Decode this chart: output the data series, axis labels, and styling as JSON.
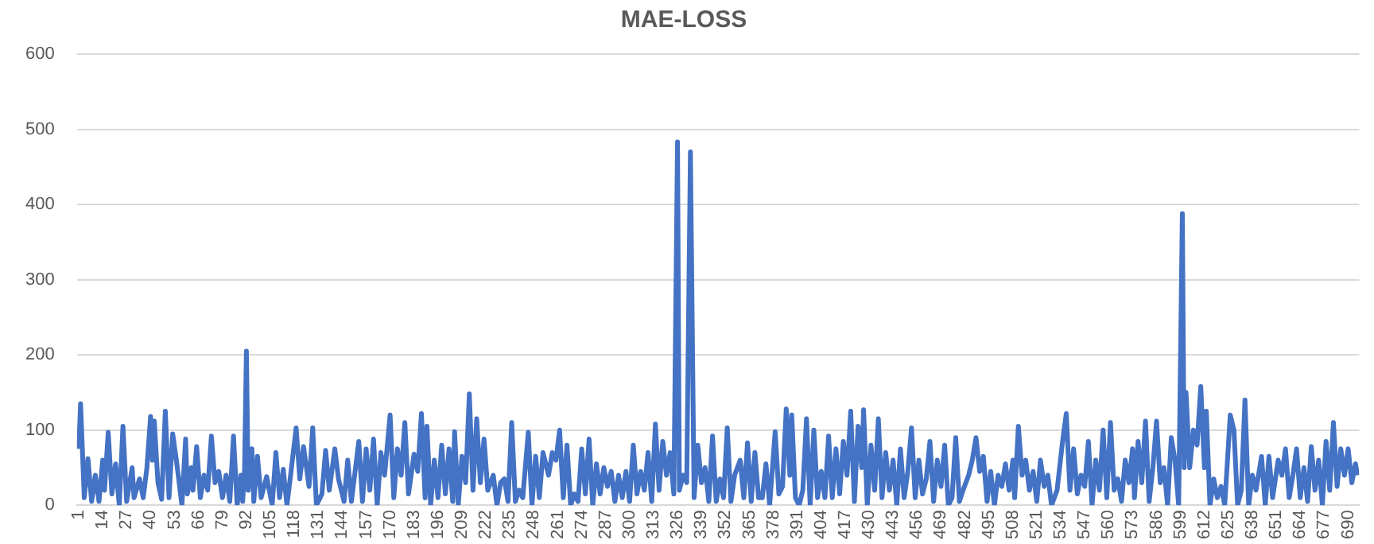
{
  "chart_data": {
    "type": "line",
    "title": "MAE-LOSS",
    "color": "#4472c4",
    "grid": "y",
    "legend": false,
    "marker": "none",
    "line_style": "solid",
    "ylim": [
      0,
      600
    ],
    "yticks": [
      0,
      100,
      200,
      300,
      400,
      500,
      600
    ],
    "xlim": [
      0,
      696
    ],
    "xticks": [
      1,
      14,
      27,
      40,
      53,
      66,
      79,
      92,
      105,
      118,
      131,
      144,
      157,
      170,
      183,
      196,
      209,
      222,
      235,
      248,
      261,
      274,
      287,
      300,
      313,
      326,
      339,
      352,
      365,
      378,
      391,
      404,
      417,
      430,
      443,
      456,
      469,
      482,
      495,
      508,
      521,
      534,
      547,
      560,
      573,
      586,
      599,
      612,
      625,
      638,
      651,
      664,
      677,
      690
    ],
    "x": [
      1,
      2,
      4,
      6,
      8,
      10,
      12,
      14,
      15,
      17,
      19,
      21,
      23,
      25,
      27,
      30,
      31,
      34,
      36,
      38,
      40,
      41,
      42,
      44,
      46,
      48,
      50,
      52,
      54,
      57,
      59,
      60,
      62,
      63,
      65,
      67,
      69,
      71,
      73,
      75,
      77,
      79,
      81,
      83,
      85,
      87,
      89,
      90,
      91,
      92,
      93,
      95,
      96,
      98,
      100,
      103,
      106,
      108,
      110,
      112,
      114,
      116,
      119,
      121,
      123,
      126,
      128,
      130,
      133,
      135,
      137,
      140,
      142,
      145,
      147,
      149,
      151,
      153,
      155,
      157,
      159,
      161,
      163,
      165,
      167,
      170,
      172,
      174,
      176,
      178,
      180,
      183,
      185,
      187,
      189,
      190,
      192,
      194,
      196,
      198,
      200,
      202,
      204,
      205,
      207,
      209,
      211,
      213,
      215,
      217,
      219,
      221,
      223,
      226,
      228,
      230,
      232,
      234,
      236,
      238,
      240,
      242,
      245,
      247,
      249,
      251,
      253,
      256,
      258,
      260,
      262,
      264,
      266,
      268,
      270,
      272,
      274,
      276,
      278,
      280,
      282,
      284,
      286,
      288,
      290,
      292,
      294,
      296,
      298,
      300,
      302,
      304,
      306,
      308,
      310,
      312,
      314,
      316,
      318,
      320,
      322,
      324,
      326,
      327,
      329,
      331,
      333,
      335,
      337,
      339,
      341,
      343,
      345,
      347,
      349,
      351,
      353,
      355,
      357,
      360,
      362,
      364,
      366,
      368,
      370,
      372,
      374,
      376,
      379,
      381,
      383,
      385,
      387,
      388,
      390,
      392,
      394,
      396,
      398,
      400,
      402,
      404,
      406,
      408,
      410,
      412,
      414,
      416,
      418,
      420,
      422,
      424,
      426,
      427,
      429,
      431,
      433,
      435,
      437,
      439,
      441,
      443,
      445,
      447,
      449,
      451,
      453,
      455,
      457,
      459,
      461,
      463,
      465,
      467,
      469,
      471,
      473,
      475,
      477,
      479,
      481,
      484,
      486,
      488,
      490,
      492,
      494,
      496,
      498,
      500,
      502,
      504,
      506,
      508,
      509,
      511,
      513,
      515,
      517,
      519,
      521,
      523,
      525,
      527,
      529,
      532,
      535,
      537,
      539,
      541,
      543,
      545,
      547,
      549,
      551,
      553,
      555,
      557,
      559,
      561,
      563,
      565,
      567,
      569,
      571,
      573,
      574,
      576,
      578,
      580,
      582,
      584,
      586,
      588,
      590,
      592,
      594,
      596,
      598,
      600,
      601,
      602,
      604,
      606,
      608,
      610,
      612,
      613,
      615,
      617,
      619,
      621,
      623,
      626,
      628,
      630,
      632,
      634,
      636,
      638,
      640,
      643,
      645,
      647,
      649,
      652,
      654,
      656,
      658,
      660,
      662,
      664,
      666,
      668,
      670,
      672,
      674,
      676,
      678,
      680,
      682,
      684,
      686,
      688,
      690,
      692,
      694,
      695
    ],
    "values": [
      75,
      135,
      10,
      62,
      5,
      40,
      5,
      60,
      20,
      97,
      15,
      55,
      0,
      105,
      5,
      50,
      10,
      35,
      10,
      50,
      118,
      60,
      112,
      30,
      8,
      125,
      10,
      95,
      60,
      0,
      88,
      15,
      50,
      20,
      78,
      10,
      40,
      20,
      92,
      30,
      45,
      10,
      40,
      5,
      92,
      0,
      40,
      5,
      48,
      205,
      20,
      75,
      5,
      65,
      10,
      38,
      0,
      70,
      10,
      48,
      0,
      40,
      103,
      35,
      78,
      25,
      103,
      0,
      15,
      73,
      20,
      75,
      35,
      5,
      60,
      5,
      45,
      85,
      5,
      75,
      20,
      88,
      0,
      70,
      40,
      120,
      10,
      75,
      40,
      110,
      15,
      68,
      45,
      122,
      10,
      105,
      0,
      60,
      10,
      80,
      15,
      75,
      5,
      98,
      0,
      65,
      30,
      148,
      20,
      115,
      30,
      88,
      20,
      40,
      0,
      30,
      35,
      5,
      110,
      5,
      20,
      10,
      97,
      0,
      65,
      10,
      70,
      40,
      70,
      60,
      100,
      10,
      80,
      0,
      15,
      5,
      75,
      15,
      88,
      0,
      55,
      15,
      50,
      25,
      45,
      5,
      40,
      10,
      45,
      5,
      80,
      15,
      45,
      20,
      70,
      5,
      108,
      20,
      85,
      40,
      70,
      15,
      483,
      20,
      40,
      30,
      470,
      10,
      80,
      30,
      50,
      5,
      92,
      5,
      35,
      10,
      103,
      5,
      40,
      60,
      10,
      83,
      5,
      70,
      10,
      10,
      55,
      0,
      98,
      15,
      25,
      128,
      40,
      120,
      10,
      0,
      20,
      115,
      0,
      100,
      10,
      45,
      10,
      92,
      10,
      75,
      15,
      85,
      40,
      125,
      5,
      105,
      50,
      127,
      0,
      80,
      20,
      115,
      10,
      70,
      20,
      60,
      0,
      75,
      10,
      45,
      103,
      10,
      60,
      15,
      35,
      85,
      5,
      60,
      25,
      80,
      0,
      10,
      90,
      5,
      20,
      40,
      60,
      90,
      45,
      65,
      5,
      45,
      0,
      40,
      25,
      55,
      20,
      60,
      10,
      105,
      40,
      60,
      20,
      45,
      5,
      60,
      25,
      40,
      0,
      20,
      85,
      122,
      20,
      75,
      15,
      40,
      25,
      85,
      0,
      60,
      20,
      100,
      10,
      110,
      20,
      35,
      5,
      60,
      30,
      75,
      10,
      85,
      30,
      112,
      5,
      50,
      112,
      30,
      50,
      0,
      90,
      60,
      0,
      388,
      50,
      150,
      50,
      100,
      80,
      158,
      50,
      125,
      0,
      35,
      10,
      25,
      0,
      120,
      100,
      0,
      20,
      140,
      0,
      40,
      20,
      65,
      0,
      65,
      10,
      60,
      40,
      75,
      10,
      40,
      75,
      10,
      50,
      5,
      78,
      20,
      60,
      0,
      85,
      20,
      110,
      25,
      75,
      40,
      75,
      30,
      55,
      40
    ]
  }
}
